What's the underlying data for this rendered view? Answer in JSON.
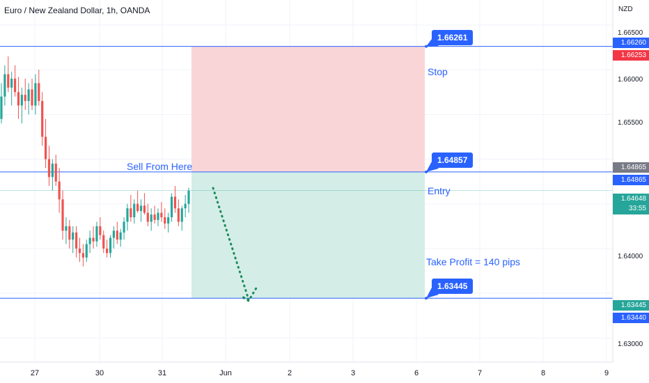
{
  "title": "Euro / New Zealand Dollar, 1h, OANDA",
  "currency": "NZD",
  "annotations": {
    "sell_from_here": "Sell From Here",
    "stop": "Stop",
    "entry": "Entry",
    "take_profit": "Take Profit = 140 pips"
  },
  "callouts": {
    "stop_value": "1.66261",
    "entry_value": "1.64857",
    "tp_value": "1.63445"
  },
  "badges": {
    "stop_line": "1.66260",
    "stop_red": "1.66253",
    "entry_gray": "1.64865",
    "entry_line": "1.64865",
    "current": "1.64648",
    "countdown": "33:55",
    "tp_green": "1.63445",
    "tp_line": "1.63440"
  },
  "axis_ticks": [
    "1.66500",
    "1.66000",
    "1.65500",
    "1.64000",
    "1.63000"
  ],
  "x_ticks": [
    "27",
    "30",
    "31",
    "Jun",
    "2",
    "3",
    "6",
    "7",
    "8",
    "9"
  ],
  "colors": {
    "line_blue": "#2962ff",
    "stop_zone": "#f9d5d8",
    "profit_zone": "#d4ede6",
    "bull": "#26a69a",
    "bear": "#ef5350",
    "red_badge": "#f23645",
    "gray_badge": "#787b86",
    "dotted_arrow": "#1b8a5a"
  },
  "chart_data": {
    "type": "candlestick",
    "ylim": [
      1.6273,
      1.6678
    ],
    "levels": {
      "stop": 1.66261,
      "entry": 1.64857,
      "take_profit": 1.63445,
      "current": 1.64648
    },
    "candles": [
      [
        1.6545,
        1.6585,
        1.654,
        1.657
      ],
      [
        1.657,
        1.6605,
        1.656,
        1.6595
      ],
      [
        1.6595,
        1.6615,
        1.6575,
        1.658
      ],
      [
        1.658,
        1.6598,
        1.656,
        1.659
      ],
      [
        1.659,
        1.6605,
        1.657,
        1.6575
      ],
      [
        1.6575,
        1.6592,
        1.6545,
        1.656
      ],
      [
        1.656,
        1.658,
        1.654,
        1.6572
      ],
      [
        1.6572,
        1.659,
        1.6555,
        1.6565
      ],
      [
        1.6565,
        1.6585,
        1.655,
        1.6578
      ],
      [
        1.6578,
        1.659,
        1.6555,
        1.656
      ],
      [
        1.656,
        1.6595,
        1.655,
        1.6585
      ],
      [
        1.6585,
        1.66,
        1.656,
        1.6565
      ],
      [
        1.6565,
        1.6575,
        1.6515,
        1.6525
      ],
      [
        1.6525,
        1.6545,
        1.649,
        1.65
      ],
      [
        1.65,
        1.6515,
        1.647,
        1.648
      ],
      [
        1.648,
        1.65,
        1.6465,
        1.6495
      ],
      [
        1.6495,
        1.6505,
        1.647,
        1.6475
      ],
      [
        1.6475,
        1.649,
        1.644,
        1.6455
      ],
      [
        1.6455,
        1.6465,
        1.641,
        1.642
      ],
      [
        1.642,
        1.6435,
        1.6405,
        1.6425
      ],
      [
        1.6425,
        1.6432,
        1.64,
        1.641
      ],
      [
        1.641,
        1.6425,
        1.6395,
        1.6418
      ],
      [
        1.6418,
        1.6425,
        1.639,
        1.64
      ],
      [
        1.64,
        1.6412,
        1.6385,
        1.6395
      ],
      [
        1.6395,
        1.6405,
        1.638,
        1.639
      ],
      [
        1.639,
        1.641,
        1.6385,
        1.6405
      ],
      [
        1.6405,
        1.642,
        1.6395,
        1.6412
      ],
      [
        1.6412,
        1.6425,
        1.64,
        1.6408
      ],
      [
        1.6408,
        1.643,
        1.6402,
        1.6425
      ],
      [
        1.6425,
        1.6435,
        1.641,
        1.6415
      ],
      [
        1.6415,
        1.642,
        1.6395,
        1.64
      ],
      [
        1.64,
        1.641,
        1.639,
        1.6395
      ],
      [
        1.6395,
        1.6415,
        1.639,
        1.6412
      ],
      [
        1.6412,
        1.6425,
        1.64,
        1.642
      ],
      [
        1.642,
        1.643,
        1.6405,
        1.641
      ],
      [
        1.641,
        1.6422,
        1.6402,
        1.6418
      ],
      [
        1.6418,
        1.6435,
        1.641,
        1.643
      ],
      [
        1.643,
        1.645,
        1.642,
        1.6445
      ],
      [
        1.6445,
        1.646,
        1.643,
        1.6435
      ],
      [
        1.6435,
        1.6455,
        1.6428,
        1.645
      ],
      [
        1.645,
        1.6465,
        1.644,
        1.6442
      ],
      [
        1.6442,
        1.6455,
        1.643,
        1.6448
      ],
      [
        1.6448,
        1.6462,
        1.6438,
        1.644
      ],
      [
        1.644,
        1.645,
        1.6425,
        1.643
      ],
      [
        1.643,
        1.6445,
        1.642,
        1.6438
      ],
      [
        1.6438,
        1.6448,
        1.6428,
        1.6432
      ],
      [
        1.6432,
        1.6445,
        1.6425,
        1.644
      ],
      [
        1.644,
        1.6452,
        1.643,
        1.6435
      ],
      [
        1.6435,
        1.6445,
        1.6422,
        1.6428
      ],
      [
        1.6428,
        1.644,
        1.6418,
        1.6435
      ],
      [
        1.6435,
        1.6462,
        1.643,
        1.6458
      ],
      [
        1.6458,
        1.647,
        1.644,
        1.6445
      ],
      [
        1.6445,
        1.6455,
        1.6425,
        1.643
      ],
      [
        1.643,
        1.6448,
        1.642,
        1.6445
      ],
      [
        1.6445,
        1.646,
        1.6435,
        1.645
      ],
      [
        1.645,
        1.6468,
        1.644,
        1.6465
      ]
    ]
  }
}
